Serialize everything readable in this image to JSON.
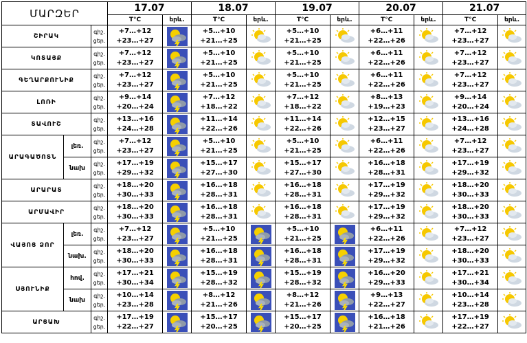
{
  "title": "ՄԱՐԶԵՐ",
  "dates": [
    "17.07",
    "18.07",
    "19.07",
    "20.07",
    "21.07"
  ],
  "temp_header": "T°C",
  "sky_header": "երև.",
  "rows": [
    {
      "region": "ՇԻՐԱԿ",
      "sub": "",
      "l1": "գիշ.",
      "l2": "ցեր.",
      "d": [
        [
          "+7…+12",
          "+23…+27"
        ],
        [
          "+5…+10",
          "+21…+25"
        ],
        [
          "+5…+10",
          "+21…+25"
        ],
        [
          "+6…+11",
          "+22…+26"
        ],
        [
          "+7…+12",
          "+23…+27"
        ]
      ],
      "ic": [
        "storm",
        "sun",
        "sun",
        "sun",
        "sun"
      ]
    },
    {
      "region": "ԿՈՏԱՅՔ",
      "sub": "",
      "l1": "գիշ.",
      "l2": "ցեր.",
      "d": [
        [
          "+7…+12",
          "+23…+27"
        ],
        [
          "+5…+10",
          "+21…+25"
        ],
        [
          "+5…+10",
          "+21…+25"
        ],
        [
          "+6…+11",
          "+22…+26"
        ],
        [
          "+7…+12",
          "+23…+27"
        ]
      ],
      "ic": [
        "storm",
        "sun",
        "sun",
        "sun",
        "sun"
      ]
    },
    {
      "region": "ԳԵՂԱՐՔՈՒՆԻՔ",
      "sub": "",
      "l1": "գիշ.",
      "l2": "ցեր.",
      "d": [
        [
          "+7…+12",
          "+23…+27"
        ],
        [
          "+5…+10",
          "+21…+25"
        ],
        [
          "+5…+10",
          "+21…+25"
        ],
        [
          "+6…+11",
          "+22…+26"
        ],
        [
          "+7…+12",
          "+23…+27"
        ]
      ],
      "ic": [
        "storm",
        "sun",
        "sun",
        "sun",
        "sun"
      ]
    },
    {
      "region": "ԼՈՌԻ",
      "sub": "",
      "l1": "գիշ.",
      "l2": "ցեր.",
      "d": [
        [
          "+9…+14",
          "+20…+24"
        ],
        [
          "+7…+12",
          "+18…+22"
        ],
        [
          "+7…+12",
          "+18…+22"
        ],
        [
          "+8…+13",
          "+19…+23"
        ],
        [
          "+9…+14",
          "+20…+24"
        ]
      ],
      "ic": [
        "storm",
        "sun",
        "sun",
        "sun",
        "sun"
      ]
    },
    {
      "region": "ՏԱՎՈՒՇ",
      "sub": "",
      "l1": "գիշ.",
      "l2": "ցեր.",
      "d": [
        [
          "+13…+16",
          "+24…+28"
        ],
        [
          "+11…+14",
          "+22…+26"
        ],
        [
          "+11…+14",
          "+22…+26"
        ],
        [
          "+12…+15",
          "+23…+27"
        ],
        [
          "+13…+16",
          "+24…+28"
        ]
      ],
      "ic": [
        "storm",
        "sun",
        "sun",
        "sun",
        "sun"
      ]
    },
    {
      "region": "ԱՐԱԳԱԾՈՏՆ",
      "sub": "լեռ.",
      "l1": "գիշ.",
      "l2": "ցեր.",
      "d": [
        [
          "+7…+12",
          "+23…+27"
        ],
        [
          "+5…+10",
          "+21…+25"
        ],
        [
          "+5…+10",
          "+21…+25"
        ],
        [
          "+6…+11",
          "+22…+26"
        ],
        [
          "+7…+12",
          "+23…+27"
        ]
      ],
      "ic": [
        "storm",
        "sun",
        "sun",
        "sun",
        "sun"
      ]
    },
    {
      "region": "",
      "sub": "նախ",
      "l1": "գիշ.",
      "l2": "ցեր.",
      "d": [
        [
          "+17…+19",
          "+29…+32"
        ],
        [
          "+15…+17",
          "+27…+30"
        ],
        [
          "+15…+17",
          "+27…+30"
        ],
        [
          "+16…+18",
          "+28…+31"
        ],
        [
          "+17…+19",
          "+29…+32"
        ]
      ],
      "ic": [
        "storm",
        "sun",
        "sun",
        "sun",
        "sun"
      ]
    },
    {
      "region": "ԱՐԱՐԱՏ",
      "sub": "",
      "l1": "գիշ.",
      "l2": "ցեր.",
      "d": [
        [
          "+18…+20",
          "+30…+33"
        ],
        [
          "+16…+18",
          "+28…+31"
        ],
        [
          "+16…+18",
          "+28…+31"
        ],
        [
          "+17…+19",
          "+29…+32"
        ],
        [
          "+18…+20",
          "+30…+33"
        ]
      ],
      "ic": [
        "storm",
        "sun",
        "sun",
        "sun",
        "sun"
      ]
    },
    {
      "region": "ԱՐՄԱՎԻՐ",
      "sub": "",
      "l1": "գիշ.",
      "l2": "ցեր.",
      "d": [
        [
          "+18…+20",
          "+30…+33"
        ],
        [
          "+16…+18",
          "+28…+31"
        ],
        [
          "+16…+18",
          "+28…+31"
        ],
        [
          "+17…+19",
          "+29…+32"
        ],
        [
          "+18…+20",
          "+30…+33"
        ]
      ],
      "ic": [
        "storm",
        "sun",
        "sun",
        "sun",
        "sun"
      ]
    },
    {
      "region": "ՎԱՅՈՑ ՁՈՐ",
      "sub": "լեռ.",
      "l1": "գիշ.",
      "l2": "ցեր.",
      "d": [
        [
          "+7…+12",
          "+23…+27"
        ],
        [
          "+5…+10",
          "+21…+25"
        ],
        [
          "+5…+10",
          "+21…+25"
        ],
        [
          "+6…+11",
          "+22…+26"
        ],
        [
          "+7…+12",
          "+23…+27"
        ]
      ],
      "ic": [
        "storm",
        "storm",
        "storm",
        "sun",
        "sun"
      ]
    },
    {
      "region": "",
      "sub": "նախ.",
      "l1": "գիշ.",
      "l2": "ցեր.",
      "d": [
        [
          "+18…+20",
          "+30…+33"
        ],
        [
          "+16…+18",
          "+28…+31"
        ],
        [
          "+16…+18",
          "+28…+31"
        ],
        [
          "+17…+19",
          "+29…+32"
        ],
        [
          "+18…+20",
          "+30…+33"
        ]
      ],
      "ic": [
        "storm",
        "storm",
        "storm",
        "sun",
        "sun"
      ]
    },
    {
      "region": "ՍՅՈՒՆԻՔ",
      "sub": "հով.",
      "l1": "գիշ.",
      "l2": "ցեր.",
      "d": [
        [
          "+17…+21",
          "+30…+34"
        ],
        [
          "+15…+19",
          "+28…+32"
        ],
        [
          "+15…+19",
          "+28…+32"
        ],
        [
          "+16…+20",
          "+29…+33"
        ],
        [
          "+17…+21",
          "+30…+34"
        ]
      ],
      "ic": [
        "storm",
        "storm",
        "storm",
        "sun",
        "sun"
      ]
    },
    {
      "region": "",
      "sub": "նախ",
      "l1": "գիշ.",
      "l2": "ցեր.",
      "d": [
        [
          "+10…+14",
          "+23…+28"
        ],
        [
          "+8…+12",
          "+21…+26"
        ],
        [
          "+8…+12",
          "+21…+26"
        ],
        [
          "+9…+13",
          "+22…+27"
        ],
        [
          "+10…+14",
          "+23…+28"
        ]
      ],
      "ic": [
        "storm",
        "storm",
        "storm",
        "sun",
        "sun"
      ]
    },
    {
      "region": "ԱՐՑԱԽ",
      "sub": "",
      "l1": "գիշ.",
      "l2": "ցեր.",
      "d": [
        [
          "+17…+19",
          "+22…+27"
        ],
        [
          "+15…+17",
          "+20…+25"
        ],
        [
          "+15…+17",
          "+20…+25"
        ],
        [
          "+16…+18",
          "+21…+26"
        ],
        [
          "+17…+19",
          "+22…+27"
        ]
      ],
      "ic": [
        "storm",
        "storm",
        "storm",
        "sun",
        "sun"
      ]
    }
  ]
}
